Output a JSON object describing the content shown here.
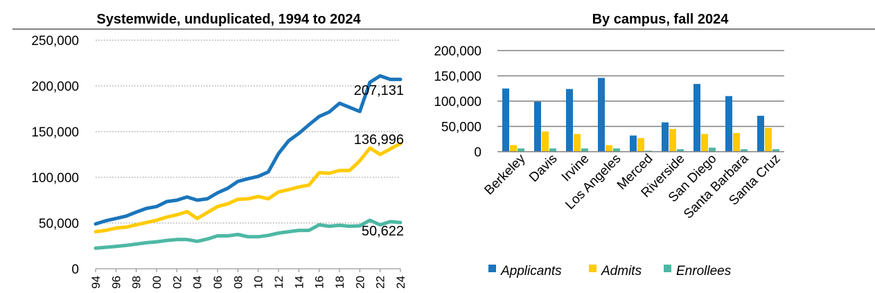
{
  "colors": {
    "applicants": "#1b75bc",
    "admits": "#ffcb05",
    "enrollees": "#4db8a4"
  },
  "chart_data": [
    {
      "type": "line",
      "title": "Systemwide, unduplicated, 1994 to 2024",
      "x": [
        "94",
        "95",
        "96",
        "97",
        "98",
        "99",
        "00",
        "01",
        "02",
        "03",
        "04",
        "05",
        "06",
        "07",
        "08",
        "09",
        "10",
        "11",
        "12",
        "13",
        "14",
        "15",
        "16",
        "17",
        "18",
        "19",
        "20",
        "21",
        "22",
        "23",
        "24"
      ],
      "xtick_labels": [
        "94",
        "96",
        "98",
        "00",
        "02",
        "04",
        "06",
        "08",
        "10",
        "12",
        "14",
        "16",
        "18",
        "20",
        "22",
        "24"
      ],
      "ylim": [
        0,
        250000
      ],
      "yticks": [
        "0",
        "50,000",
        "100,000",
        "150,000",
        "200,000",
        "250,000"
      ],
      "grid": true,
      "series": [
        {
          "key": "applicants",
          "values": [
            49000,
            52500,
            55000,
            57500,
            62000,
            66000,
            68000,
            73500,
            75000,
            78500,
            75000,
            76500,
            83000,
            88000,
            95500,
            98500,
            101000,
            106000,
            126000,
            140000,
            148000,
            157500,
            166500,
            171500,
            181000,
            176500,
            172000,
            204000,
            211000,
            207131,
            207131
          ]
        },
        {
          "key": "admits",
          "values": [
            40500,
            42000,
            44500,
            45500,
            48000,
            50500,
            53000,
            56500,
            59000,
            62500,
            55000,
            61500,
            68000,
            71000,
            76000,
            76500,
            79000,
            76500,
            84000,
            86500,
            89500,
            91500,
            105000,
            104500,
            107500,
            107500,
            118000,
            132000,
            125000,
            131000,
            136996
          ]
        },
        {
          "key": "enrollees",
          "values": [
            22500,
            23500,
            24500,
            25500,
            27000,
            28500,
            29500,
            31000,
            32000,
            32000,
            30000,
            32500,
            36000,
            36000,
            37500,
            35000,
            35000,
            36500,
            39000,
            40500,
            42000,
            42000,
            48000,
            46500,
            47500,
            46500,
            47000,
            53000,
            48000,
            51500,
            50622
          ]
        }
      ],
      "annotations": [
        "207,131",
        "136,996",
        "50,622"
      ]
    },
    {
      "type": "bar",
      "title": "By campus, fall 2024",
      "categories": [
        "Berkeley",
        "Davis",
        "Irvine",
        "Los Angeles",
        "Merced",
        "Riverside",
        "San Diego",
        "Santa Barbara",
        "Santa Cruz"
      ],
      "ylim": [
        0,
        200000
      ],
      "yticks": [
        "0",
        "50,000",
        "100,000",
        "150,000",
        "200,000"
      ],
      "grid": true,
      "series": [
        {
          "name": "Applicants",
          "key": "applicants",
          "values": [
            125000,
            99000,
            124000,
            146000,
            32000,
            58000,
            134000,
            110000,
            71000
          ]
        },
        {
          "name": "Admits",
          "key": "admits",
          "values": [
            13000,
            40000,
            35000,
            13000,
            27000,
            45000,
            35000,
            37000,
            47000
          ]
        },
        {
          "name": "Enrollees",
          "key": "enrollees",
          "values": [
            6500,
            6500,
            6500,
            6500,
            2000,
            5000,
            8000,
            5000,
            5000
          ]
        }
      ],
      "legend_position": "bottom"
    }
  ]
}
